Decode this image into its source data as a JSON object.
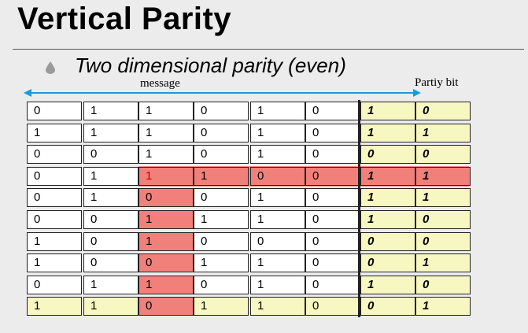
{
  "slide": {
    "title": "Vertical Parity",
    "bullet": "Two dimensional parity (even)",
    "message_label": "message",
    "parity_label": "Partiy bit",
    "accent_color": "#1a9bd8",
    "highlight_color": "#f2807a",
    "parity_bg_color": "#f7f7c2"
  },
  "table": {
    "rows": [
      {
        "bits": [
          "0",
          "1",
          "1",
          "0",
          "1",
          "0"
        ],
        "parity": [
          "1",
          "0"
        ]
      },
      {
        "bits": [
          "1",
          "1",
          "1",
          "0",
          "1",
          "0"
        ],
        "parity": [
          "1",
          "1"
        ]
      },
      {
        "bits": [
          "0",
          "0",
          "1",
          "0",
          "1",
          "0"
        ],
        "parity": [
          "0",
          "0"
        ]
      },
      {
        "bits": [
          "0",
          "1",
          "1",
          "1",
          "0",
          "0"
        ],
        "parity": [
          "1",
          "1"
        ]
      },
      {
        "bits": [
          "0",
          "1",
          "0",
          "0",
          "1",
          "0"
        ],
        "parity": [
          "1",
          "1"
        ]
      },
      {
        "bits": [
          "0",
          "0",
          "1",
          "1",
          "1",
          "0"
        ],
        "parity": [
          "1",
          "0"
        ]
      },
      {
        "bits": [
          "1",
          "0",
          "1",
          "0",
          "0",
          "0"
        ],
        "parity": [
          "0",
          "0"
        ]
      },
      {
        "bits": [
          "1",
          "0",
          "0",
          "1",
          "1",
          "0"
        ],
        "parity": [
          "0",
          "1"
        ]
      },
      {
        "bits": [
          "0",
          "1",
          "1",
          "0",
          "1",
          "0"
        ],
        "parity": [
          "1",
          "0"
        ]
      },
      {
        "bits": [
          "1",
          "1",
          "0",
          "1",
          "1",
          "0"
        ],
        "parity": [
          "0",
          "1"
        ]
      }
    ],
    "error_row": 3,
    "error_col": 2,
    "parity_row": 9
  }
}
